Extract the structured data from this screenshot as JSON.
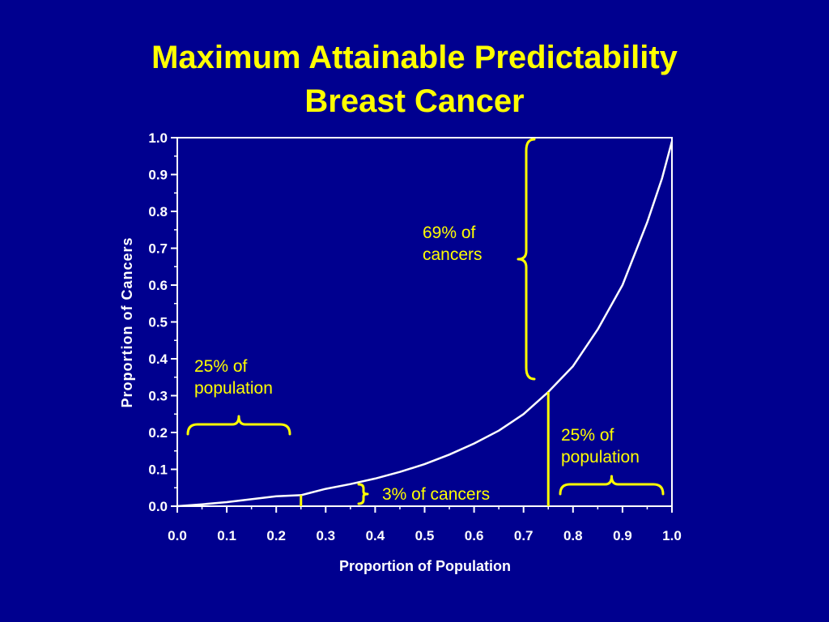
{
  "title_line1": "Maximum Attainable Predictability",
  "title_line2": "Breast Cancer",
  "annotations": {
    "cancers_top": [
      "69% of",
      "cancers"
    ],
    "population_left": [
      "25% of",
      "population"
    ],
    "population_right": [
      "25% of",
      "population"
    ],
    "cancers_bottom": "3% of cancers"
  },
  "colors": {
    "background": "#00008f",
    "title": "#ffff00",
    "axis": "#ffffff",
    "curve": "#ffffff",
    "annotation": "#ffff00"
  },
  "chart_data": {
    "type": "line",
    "title": "Maximum Attainable Predictability Breast Cancer",
    "xlabel": "Proportion of Population",
    "ylabel": "Proportion of Cancers",
    "xlim": [
      0.0,
      1.0
    ],
    "ylim": [
      0.0,
      1.0
    ],
    "xticks": [
      "0.0",
      "0.1",
      "0.2",
      "0.3",
      "0.4",
      "0.5",
      "0.6",
      "0.7",
      "0.8",
      "0.9",
      "1.0"
    ],
    "yticks": [
      "0.0",
      "0.1",
      "0.2",
      "0.3",
      "0.4",
      "0.5",
      "0.6",
      "0.7",
      "0.8",
      "0.9",
      "1.0"
    ],
    "grid": false,
    "series": [
      {
        "x": [
          0.0,
          0.05,
          0.1,
          0.15,
          0.2,
          0.25,
          0.3,
          0.35,
          0.4,
          0.45,
          0.5,
          0.55,
          0.6,
          0.65,
          0.7,
          0.75,
          0.8,
          0.85,
          0.9,
          0.95,
          0.98,
          1.0
        ],
        "y": [
          0.0,
          0.005,
          0.011,
          0.019,
          0.027,
          0.03,
          0.047,
          0.06,
          0.075,
          0.093,
          0.114,
          0.14,
          0.17,
          0.205,
          0.25,
          0.31,
          0.38,
          0.48,
          0.6,
          0.77,
          0.89,
          0.99
        ]
      }
    ],
    "markers": [
      {
        "x": 0.25,
        "y": 0.03
      },
      {
        "x": 0.75,
        "y": 0.31
      }
    ]
  }
}
